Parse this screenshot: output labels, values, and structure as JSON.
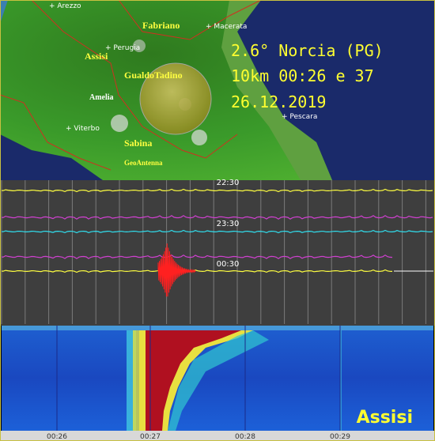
{
  "map": {
    "labels": [
      "+ Arezzo",
      "Fabriano",
      "+ Macerata",
      "+ Perugia",
      "Assisi",
      "GualdoTadino",
      "Amelia",
      "+ Viterbo",
      "+ Pescara",
      "Sabina",
      "GeoAntenna"
    ]
  },
  "event": {
    "lines": [
      "2.6° Norcia (PG)",
      "10km 00:26 e 37",
      "26.12.2019"
    ]
  },
  "helicorder": {
    "time_labels": [
      "22:30",
      "23:30",
      "00:30"
    ]
  },
  "spectrogram": {
    "station": "Assisi",
    "time_labels": [
      "00:26",
      "00:27",
      "00:28",
      "00:29"
    ]
  }
}
